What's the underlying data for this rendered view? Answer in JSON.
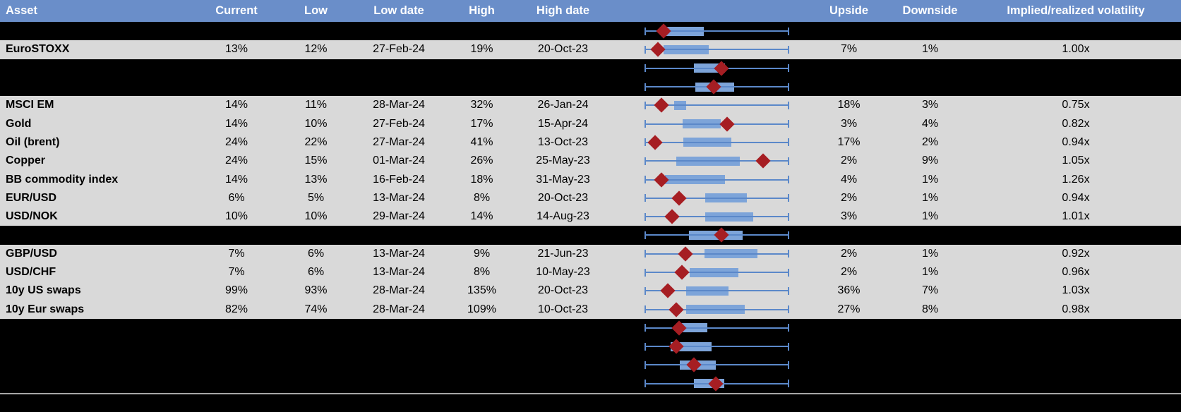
{
  "table": {
    "header": {
      "asset": "Asset",
      "current": "Current",
      "low": "Low",
      "low_date": "Low date",
      "high": "High",
      "high_date": "High date",
      "chart": "",
      "upside": "Upside",
      "downside": "Downside",
      "impl_real": "Implied/realized volatility"
    },
    "rows": [
      {
        "type": "spacer",
        "box": {
          "lo": 14.6,
          "hi": 41.0,
          "diamond": 13.2
        }
      },
      {
        "type": "data",
        "asset": "EuroSTOXX",
        "current": "13%",
        "low": "12%",
        "low_date": "27-Feb-24",
        "high": "19%",
        "high_date": "20-Oct-23",
        "upside": "7%",
        "downside": "1%",
        "impl_real": "1.00x",
        "box": {
          "lo": 13.2,
          "hi": 44.4,
          "diamond": 9.3
        }
      },
      {
        "type": "spacer",
        "box": {
          "lo": 34.1,
          "hi": 55.6,
          "diamond": 53.2
        }
      },
      {
        "type": "spacer",
        "box": {
          "lo": 35.1,
          "hi": 62.0,
          "diamond": 47.8
        }
      },
      {
        "type": "data",
        "asset": "MSCI EM",
        "current": "14%",
        "low": "11%",
        "low_date": "28-Mar-24",
        "high": "32%",
        "high_date": "26-Jan-24",
        "upside": "18%",
        "downside": "3%",
        "impl_real": "0.75x",
        "box": {
          "lo": 20.5,
          "hi": 28.8,
          "diamond": 11.7
        }
      },
      {
        "type": "data",
        "asset": "Gold",
        "current": "14%",
        "low": "10%",
        "low_date": "27-Feb-24",
        "high": "17%",
        "high_date": "15-Apr-24",
        "upside": "3%",
        "downside": "4%",
        "impl_real": "0.82x",
        "box": {
          "lo": 26.3,
          "hi": 52.7,
          "diamond": 57.1
        }
      },
      {
        "type": "data",
        "asset": "Oil (brent)",
        "current": "24%",
        "low": "22%",
        "low_date": "27-Mar-24",
        "high": "41%",
        "high_date": "13-Oct-23",
        "upside": "17%",
        "downside": "2%",
        "impl_real": "0.94x",
        "box": {
          "lo": 26.8,
          "hi": 60.0,
          "diamond": 7.3
        }
      },
      {
        "type": "data",
        "asset": "Copper",
        "current": "24%",
        "low": "15%",
        "low_date": "01-Mar-24",
        "high": "26%",
        "high_date": "25-May-23",
        "upside": "2%",
        "downside": "9%",
        "impl_real": "1.05x",
        "box": {
          "lo": 22.0,
          "hi": 65.9,
          "diamond": 82.0
        }
      },
      {
        "type": "data",
        "asset": "BB commodity index",
        "current": "14%",
        "low": "13%",
        "low_date": "16-Feb-24",
        "high": "18%",
        "high_date": "31-May-23",
        "upside": "4%",
        "downside": "1%",
        "impl_real": "1.26x",
        "box": {
          "lo": 14.1,
          "hi": 55.6,
          "diamond": 11.7
        }
      },
      {
        "type": "data",
        "asset": "EUR/USD",
        "current": "6%",
        "low": "5%",
        "low_date": "13-Mar-24",
        "high": "8%",
        "high_date": "20-Oct-23",
        "upside": "2%",
        "downside": "1%",
        "impl_real": "0.94x",
        "box": {
          "lo": 42.0,
          "hi": 70.7,
          "diamond": 23.9
        }
      },
      {
        "type": "data",
        "asset": "USD/NOK",
        "current": "10%",
        "low": "10%",
        "low_date": "29-Mar-24",
        "high": "14%",
        "high_date": "14-Aug-23",
        "upside": "3%",
        "downside": "1%",
        "impl_real": "1.01x",
        "box": {
          "lo": 42.0,
          "hi": 75.1,
          "diamond": 19.0
        }
      },
      {
        "type": "spacer",
        "box": {
          "lo": 30.7,
          "hi": 67.8,
          "diamond": 53.2
        }
      },
      {
        "type": "data",
        "asset": "GBP/USD",
        "current": "7%",
        "low": "6%",
        "low_date": "13-Mar-24",
        "high": "9%",
        "high_date": "21-Jun-23",
        "upside": "2%",
        "downside": "1%",
        "impl_real": "0.92x",
        "box": {
          "lo": 41.5,
          "hi": 78.0,
          "diamond": 28.3
        }
      },
      {
        "type": "data",
        "asset": "USD/CHF",
        "current": "7%",
        "low": "6%",
        "low_date": "13-Mar-24",
        "high": "8%",
        "high_date": "10-May-23",
        "upside": "2%",
        "downside": "1%",
        "impl_real": "0.96x",
        "box": {
          "lo": 31.2,
          "hi": 64.9,
          "diamond": 25.9
        }
      },
      {
        "type": "data",
        "asset": "10y US swaps",
        "current": "99%",
        "low": "93%",
        "low_date": "28-Mar-24",
        "high": "135%",
        "high_date": "20-Oct-23",
        "upside": "36%",
        "downside": "7%",
        "impl_real": "1.03x",
        "box": {
          "lo": 28.8,
          "hi": 58.0,
          "diamond": 16.1
        }
      },
      {
        "type": "data",
        "asset": "10y Eur swaps",
        "current": "82%",
        "low": "74%",
        "low_date": "28-Mar-24",
        "high": "109%",
        "high_date": "10-Oct-23",
        "upside": "27%",
        "downside": "8%",
        "impl_real": "0.98x",
        "box": {
          "lo": 28.8,
          "hi": 69.3,
          "diamond": 22.0
        }
      },
      {
        "type": "spacer",
        "box": {
          "lo": 24.4,
          "hi": 43.4,
          "diamond": 23.9
        }
      },
      {
        "type": "spacer",
        "box": {
          "lo": 18.0,
          "hi": 46.3,
          "diamond": 22.0
        }
      },
      {
        "type": "spacer",
        "box": {
          "lo": 24.4,
          "hi": 49.3,
          "diamond": 34.1
        }
      },
      {
        "type": "spacer",
        "box": {
          "lo": 34.1,
          "hi": 55.1,
          "diamond": 49.3
        }
      }
    ]
  },
  "colors": {
    "header_bg": "#6a8ec9",
    "header_text": "#ffffff",
    "row_gray": "#d9d9d9",
    "row_black": "#000000",
    "box_fill": "#7da4d9",
    "whisker": "#5b88c9",
    "diamond_marker": "#a61e23",
    "footer_divider": "#a6a6a6"
  }
}
